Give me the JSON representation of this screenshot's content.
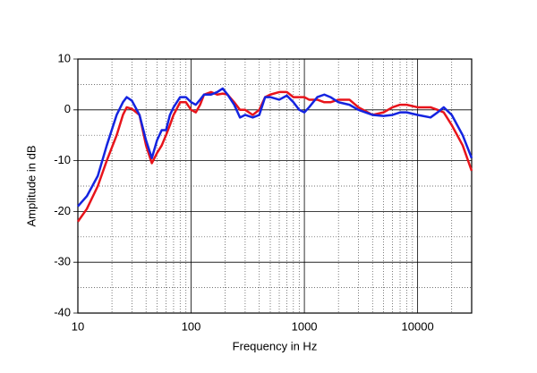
{
  "chart_data": {
    "type": "line",
    "xlabel": "Frequency in Hz",
    "ylabel": "Amplitude in dB",
    "xscale": "log",
    "grid": true,
    "xlim": [
      10,
      30000
    ],
    "ylim": [
      -40,
      10
    ],
    "xticks": [
      10,
      100,
      1000,
      10000
    ],
    "yticks": [
      10,
      0,
      -10,
      -20,
      -30,
      -40
    ],
    "x": [
      10,
      12,
      15,
      18,
      22,
      25,
      27,
      30,
      35,
      40,
      45,
      50,
      55,
      60,
      65,
      70,
      80,
      90,
      100,
      110,
      120,
      130,
      150,
      170,
      190,
      210,
      240,
      270,
      300,
      350,
      400,
      450,
      500,
      600,
      700,
      800,
      900,
      1000,
      1100,
      1300,
      1500,
      1700,
      2000,
      2500,
      3000,
      4000,
      5000,
      6000,
      7000,
      8000,
      10000,
      13000,
      15000,
      17000,
      20000,
      25000,
      30000
    ],
    "series": [
      {
        "color": "#e8141b",
        "values": [
          -22,
          -19.5,
          -15,
          -10,
          -5,
          -1,
          0.5,
          0.2,
          -1,
          -7,
          -10.5,
          -8.5,
          -7,
          -5,
          -3,
          -1,
          1.5,
          1.5,
          0,
          -0.5,
          1,
          3,
          3.5,
          3,
          3.2,
          3,
          1.5,
          0,
          0,
          -1,
          0,
          2.5,
          3,
          3.5,
          3.5,
          2.5,
          2.5,
          2.5,
          2,
          2,
          1.5,
          1.5,
          2,
          2,
          0.5,
          -1,
          -0.5,
          0.5,
          1,
          1,
          0.5,
          0.5,
          0,
          -0.5,
          -3,
          -7,
          -12
        ]
      },
      {
        "color": "#1424e0",
        "values": [
          -19,
          -17,
          -13,
          -7,
          -1,
          1.5,
          2.5,
          1.8,
          -1,
          -6,
          -9.5,
          -6,
          -4,
          -4,
          -1,
          0.5,
          2.5,
          2.5,
          1.5,
          1,
          2,
          3,
          3,
          3.5,
          4.2,
          3,
          1,
          -1.5,
          -1,
          -1.5,
          -1,
          2.5,
          2.5,
          2,
          2.8,
          1.5,
          0,
          -0.5,
          0.5,
          2.5,
          3,
          2.5,
          1.5,
          1,
          0,
          -1,
          -1.2,
          -1,
          -0.5,
          -0.5,
          -1,
          -1.5,
          -0.5,
          0.5,
          -1,
          -5,
          -9.5
        ]
      }
    ]
  }
}
